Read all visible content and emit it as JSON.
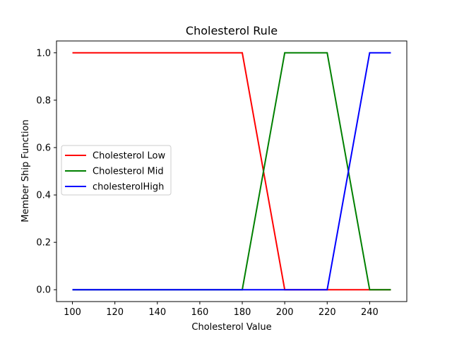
{
  "chart_data": {
    "type": "line",
    "title": "Cholesterol Rule",
    "xlabel": "Cholesterol Value",
    "ylabel": "Member Ship Function",
    "xlim": [
      92.5,
      257.5
    ],
    "ylim": [
      -0.05,
      1.05
    ],
    "xticks": [
      100,
      120,
      140,
      160,
      180,
      200,
      220,
      240
    ],
    "yticks": [
      0.0,
      0.2,
      0.4,
      0.6,
      0.8,
      1.0
    ],
    "xtick_labels": [
      "100",
      "120",
      "140",
      "160",
      "180",
      "200",
      "220",
      "240"
    ],
    "ytick_labels": [
      "0.0",
      "0.2",
      "0.4",
      "0.6",
      "0.8",
      "1.0"
    ],
    "grid": false,
    "legend_position": "center-left",
    "series": [
      {
        "name": "Cholesterol Low",
        "color": "#ff0000",
        "x": [
          100,
          180,
          200,
          250
        ],
        "y": [
          1,
          1,
          0,
          0
        ]
      },
      {
        "name": "Cholesterol Mid",
        "color": "#008000",
        "x": [
          100,
          180,
          200,
          220,
          240,
          250
        ],
        "y": [
          0,
          0,
          1,
          1,
          0,
          0
        ]
      },
      {
        "name": "cholesterolHigh",
        "color": "#0000ff",
        "x": [
          100,
          220,
          240,
          250
        ],
        "y": [
          0,
          0,
          1,
          1
        ]
      }
    ]
  }
}
